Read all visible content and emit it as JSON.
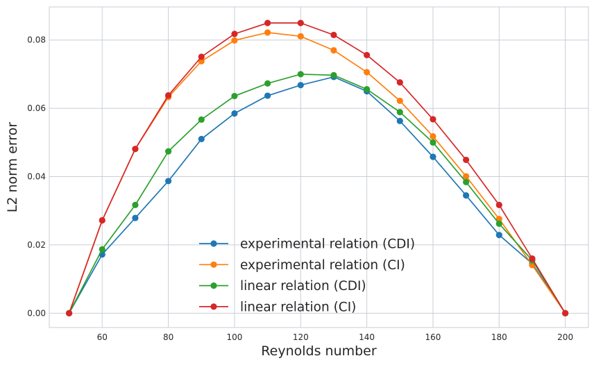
{
  "chart_data": {
    "type": "line",
    "title": "",
    "xlabel": "Reynolds number",
    "ylabel": "L2 norm error",
    "xlim": [
      44,
      207
    ],
    "ylim": [
      -0.0042,
      0.0897
    ],
    "xticks": [
      60,
      80,
      100,
      120,
      140,
      160,
      180,
      200
    ],
    "yticks": [
      0.0,
      0.02,
      0.04,
      0.06,
      0.08
    ],
    "xtick_labels": [
      "60",
      "80",
      "100",
      "120",
      "140",
      "160",
      "180",
      "200"
    ],
    "ytick_labels": [
      "0.00",
      "0.02",
      "0.04",
      "0.06",
      "0.08"
    ],
    "grid": true,
    "legend_position": "bottom-center",
    "x": [
      50,
      60,
      70,
      80,
      90,
      100,
      110,
      120,
      130,
      140,
      150,
      160,
      170,
      180,
      190,
      200
    ],
    "series": [
      {
        "name": "experimental relation (CDI)",
        "color": "#1f77b4",
        "values": [
          0.0,
          0.0172,
          0.0279,
          0.0387,
          0.051,
          0.0585,
          0.0637,
          0.0668,
          0.0692,
          0.065,
          0.0563,
          0.0458,
          0.0345,
          0.0229,
          0.0145,
          0.0
        ]
      },
      {
        "name": "experimental relation (CI)",
        "color": "#ff7f0e",
        "values": [
          0.0,
          0.0272,
          0.0481,
          0.0633,
          0.0738,
          0.0799,
          0.0822,
          0.0811,
          0.077,
          0.0706,
          0.0622,
          0.0518,
          0.0401,
          0.0276,
          0.0141,
          0.0
        ]
      },
      {
        "name": "linear relation (CDI)",
        "color": "#2ca02c",
        "values": [
          0.0,
          0.0187,
          0.0317,
          0.0474,
          0.0567,
          0.0636,
          0.0673,
          0.07,
          0.0697,
          0.0656,
          0.0589,
          0.05,
          0.0384,
          0.0262,
          0.0155,
          0.0
        ]
      },
      {
        "name": "linear relation (CI)",
        "color": "#d62728",
        "values": [
          0.0,
          0.0272,
          0.0481,
          0.0638,
          0.0751,
          0.0818,
          0.085,
          0.085,
          0.0815,
          0.0756,
          0.0676,
          0.0568,
          0.0449,
          0.0317,
          0.016,
          0.0
        ]
      }
    ]
  }
}
